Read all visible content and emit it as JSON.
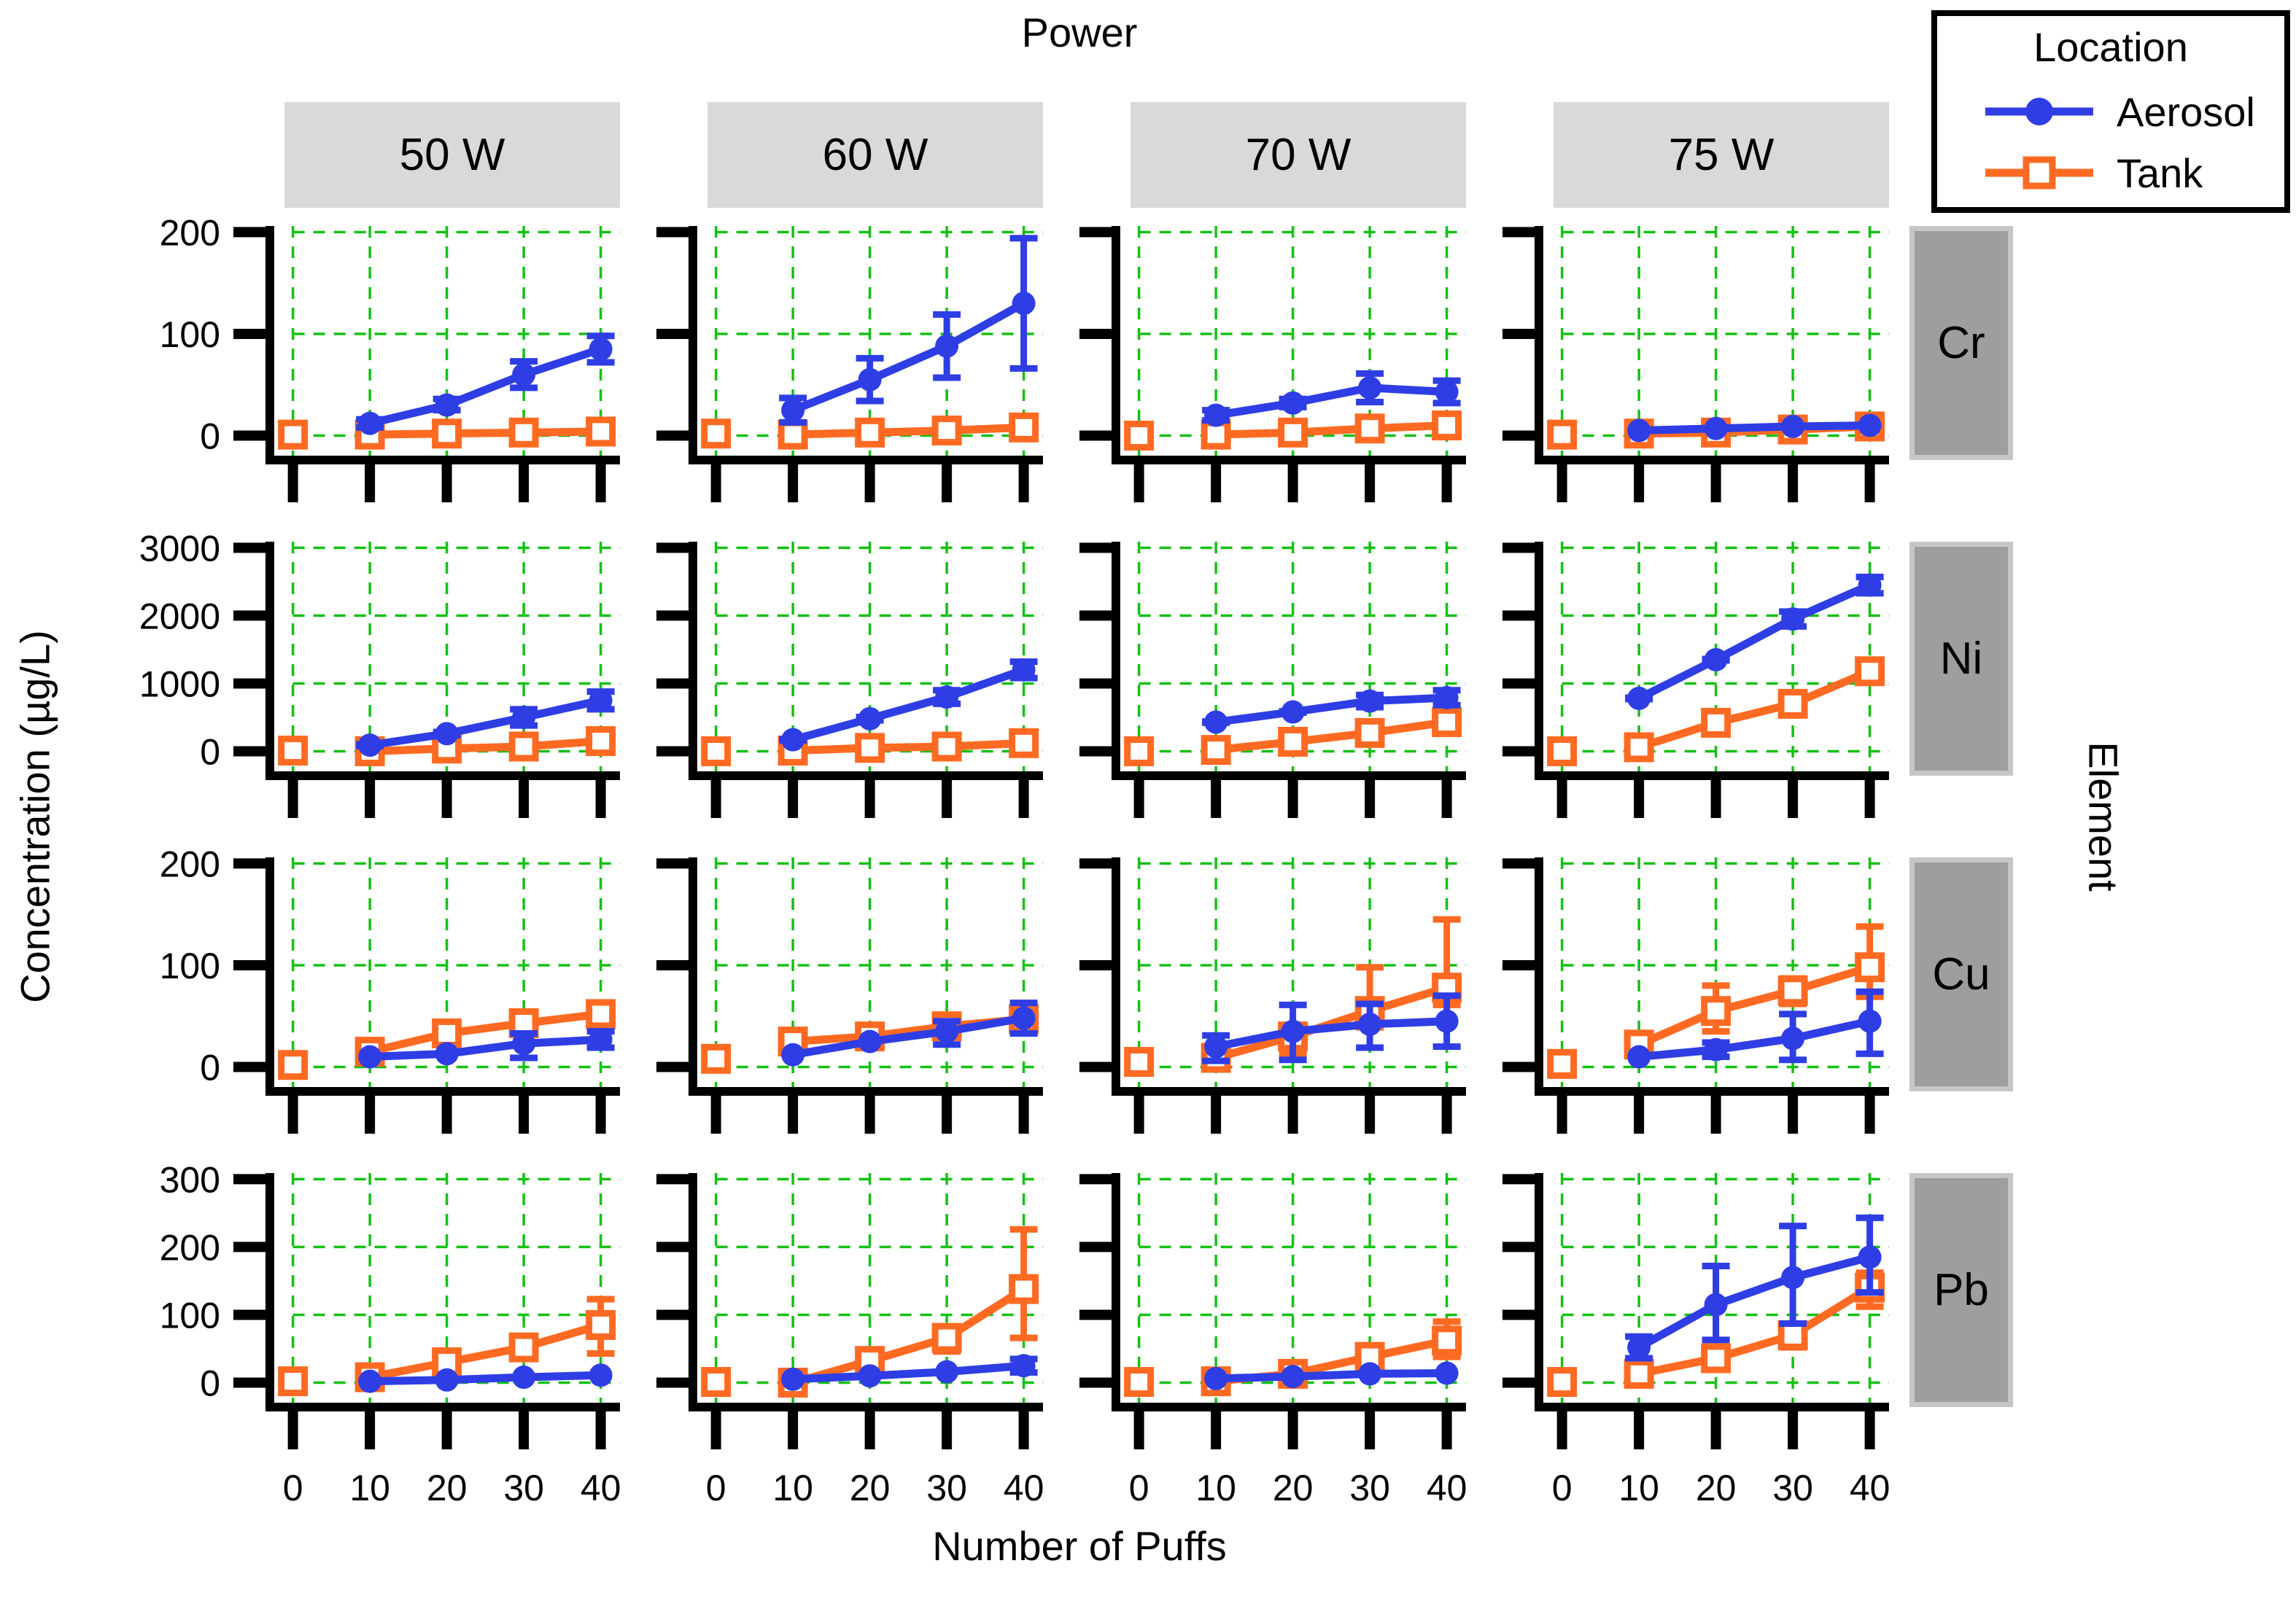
{
  "figure": {
    "top_title": "Power",
    "bottom_title": "Number of Puffs",
    "left_title": "Concentration (µg/L)",
    "right_title": "Element",
    "legend": {
      "title": "Location",
      "items": [
        {
          "label": "Aerosol",
          "series": "aerosol",
          "marker": "filled-circle"
        },
        {
          "label": "Tank",
          "series": "tank",
          "marker": "open-square"
        }
      ]
    },
    "colors": {
      "aerosol": "#2e3ee4",
      "tank": "#ff6a22",
      "grid": "#15c015",
      "axis": "#000000",
      "col_strip_bg": "#d9d9d9",
      "row_strip_bg": "#9e9e9e"
    }
  },
  "chart_data": {
    "type": "line",
    "title": "Power",
    "xlabel": "Number of Puffs",
    "ylabel": "Concentration (µg/L)",
    "facet_col_title": "Power",
    "facet_row_title": "Element",
    "facet_cols": [
      "50 W",
      "60 W",
      "70 W",
      "75 W"
    ],
    "facet_rows": [
      "Cr",
      "Ni",
      "Cu",
      "Pb"
    ],
    "x_ticks": [
      0,
      10,
      20,
      30,
      40
    ],
    "grid": "dashed-green",
    "legend_position": "top-right",
    "rows_config": [
      {
        "element": "Cr",
        "ymax": 200,
        "yticks": [
          0,
          100,
          200
        ]
      },
      {
        "element": "Ni",
        "ymax": 3000,
        "yticks": [
          0,
          1000,
          2000,
          3000
        ]
      },
      {
        "element": "Cu",
        "ymax": 200,
        "yticks": [
          0,
          100,
          200
        ]
      },
      {
        "element": "Pb",
        "ymax": 300,
        "yticks": [
          0,
          100,
          200,
          300
        ]
      }
    ],
    "panels": [
      {
        "element": "Cr",
        "power": "50 W",
        "aerosol": {
          "x": [
            10,
            20,
            30,
            40
          ],
          "y": [
            12,
            30,
            60,
            85
          ],
          "lo": [
            8,
            25,
            47,
            72
          ],
          "hi": [
            16,
            36,
            73,
            98
          ]
        },
        "tank": {
          "x": [
            0,
            10,
            20,
            30,
            40
          ],
          "y": [
            1,
            1,
            2,
            3,
            4
          ]
        }
      },
      {
        "element": "Cr",
        "power": "60 W",
        "aerosol": {
          "x": [
            10,
            20,
            30,
            40
          ],
          "y": [
            25,
            55,
            88,
            130
          ],
          "lo": [
            13,
            34,
            57,
            66
          ],
          "hi": [
            37,
            76,
            119,
            194
          ]
        },
        "tank": {
          "x": [
            0,
            10,
            20,
            30,
            40
          ],
          "y": [
            2,
            1,
            3,
            5,
            8
          ]
        }
      },
      {
        "element": "Cr",
        "power": "70 W",
        "aerosol": {
          "x": [
            10,
            20,
            30,
            40
          ],
          "y": [
            20,
            32,
            47,
            43
          ],
          "lo": [
            15,
            28,
            33,
            32
          ],
          "hi": [
            25,
            36,
            61,
            54
          ]
        },
        "tank": {
          "x": [
            0,
            10,
            20,
            30,
            40
          ],
          "y": [
            0,
            1,
            3,
            7,
            10
          ]
        }
      },
      {
        "element": "Cr",
        "power": "75 W",
        "aerosol": {
          "x": [
            10,
            20,
            30,
            40
          ],
          "y": [
            5,
            7,
            9,
            10
          ]
        },
        "tank": {
          "x": [
            0,
            10,
            20,
            30,
            40
          ],
          "y": [
            1,
            2,
            3,
            6,
            9
          ]
        }
      },
      {
        "element": "Ni",
        "power": "50 W",
        "aerosol": {
          "x": [
            10,
            20,
            30,
            40
          ],
          "y": [
            90,
            260,
            500,
            750
          ],
          "lo": [
            75,
            235,
            380,
            620
          ],
          "hi": [
            105,
            285,
            620,
            880
          ]
        },
        "tank": {
          "x": [
            0,
            10,
            20,
            30,
            40
          ],
          "y": [
            10,
            0,
            40,
            70,
            150
          ]
        }
      },
      {
        "element": "Ni",
        "power": "60 W",
        "aerosol": {
          "x": [
            10,
            20,
            30,
            40
          ],
          "y": [
            170,
            480,
            800,
            1200
          ],
          "lo": [
            160,
            455,
            700,
            1080
          ],
          "hi": [
            180,
            505,
            900,
            1320
          ]
        },
        "tank": {
          "x": [
            0,
            10,
            20,
            30,
            40
          ],
          "y": [
            0,
            10,
            50,
            70,
            120
          ]
        }
      },
      {
        "element": "Ni",
        "power": "70 W",
        "aerosol": {
          "x": [
            10,
            20,
            30,
            40
          ],
          "y": [
            430,
            580,
            740,
            790
          ],
          "lo": [
            420,
            570,
            650,
            680
          ],
          "hi": [
            440,
            590,
            830,
            900
          ]
        },
        "tank": {
          "x": [
            0,
            10,
            20,
            30,
            40
          ],
          "y": [
            0,
            20,
            140,
            270,
            430
          ]
        }
      },
      {
        "element": "Ni",
        "power": "75 W",
        "aerosol": {
          "x": [
            10,
            20,
            30,
            40
          ],
          "y": [
            780,
            1350,
            1950,
            2450
          ],
          "lo": [
            770,
            1340,
            1840,
            2330
          ],
          "hi": [
            790,
            1360,
            2060,
            2570
          ]
        },
        "tank": {
          "x": [
            0,
            10,
            20,
            30,
            40
          ],
          "y": [
            0,
            60,
            420,
            700,
            1180
          ]
        }
      },
      {
        "element": "Cu",
        "power": "50 W",
        "aerosol": {
          "x": [
            10,
            20,
            30,
            40
          ],
          "y": [
            10,
            13,
            23,
            27
          ],
          "lo": [
            10,
            13,
            9,
            19
          ],
          "hi": [
            10,
            13,
            33,
            35
          ]
        },
        "tank": {
          "x": [
            0,
            10,
            20,
            30,
            40
          ],
          "y": [
            2,
            15,
            33,
            43,
            52
          ]
        }
      },
      {
        "element": "Cu",
        "power": "60 W",
        "aerosol": {
          "x": [
            10,
            20,
            30,
            40
          ],
          "y": [
            12,
            25,
            35,
            48
          ],
          "lo": [
            12,
            25,
            22,
            33
          ],
          "hi": [
            12,
            25,
            45,
            63
          ]
        },
        "tank": {
          "x": [
            0,
            10,
            20,
            30,
            40
          ],
          "y": [
            8,
            25,
            30,
            40,
            47
          ],
          "lo": [
            8,
            25,
            30,
            40,
            39
          ],
          "hi": [
            8,
            34,
            38,
            48,
            56
          ]
        }
      },
      {
        "element": "Cu",
        "power": "70 W",
        "aerosol": {
          "x": [
            10,
            20,
            30,
            40
          ],
          "y": [
            20,
            35,
            42,
            45
          ],
          "lo": [
            6,
            7,
            19,
            20
          ],
          "hi": [
            31,
            61,
            62,
            70
          ]
        },
        "tank": {
          "x": [
            0,
            10,
            20,
            30,
            40
          ],
          "y": [
            5,
            9,
            30,
            55,
            78
          ],
          "lo": [
            5,
            9,
            13,
            39,
            61
          ],
          "hi": [
            5,
            9,
            30,
            98,
            145
          ]
        }
      },
      {
        "element": "Cu",
        "power": "75 W",
        "aerosol": {
          "x": [
            10,
            20,
            30,
            40
          ],
          "y": [
            10,
            17,
            28,
            45
          ],
          "lo": [
            10,
            10,
            7,
            13
          ],
          "hi": [
            10,
            24,
            52,
            74
          ]
        },
        "tank": {
          "x": [
            0,
            10,
            20,
            30,
            40
          ],
          "y": [
            3,
            22,
            55,
            75,
            98
          ],
          "lo": [
            3,
            22,
            35,
            62,
            69
          ],
          "hi": [
            3,
            22,
            80,
            87,
            138
          ]
        }
      },
      {
        "element": "Pb",
        "power": "50 W",
        "aerosol": {
          "x": [
            10,
            20,
            30,
            40
          ],
          "y": [
            2,
            4,
            8,
            11
          ]
        },
        "tank": {
          "x": [
            0,
            10,
            20,
            30,
            40
          ],
          "y": [
            2,
            8,
            30,
            52,
            85
          ],
          "lo": [
            2,
            8,
            30,
            52,
            43
          ],
          "hi": [
            2,
            8,
            30,
            52,
            123
          ]
        }
      },
      {
        "element": "Pb",
        "power": "60 W",
        "aerosol": {
          "x": [
            10,
            20,
            30,
            40
          ],
          "y": [
            5,
            10,
            16,
            25
          ],
          "lo": [
            5,
            10,
            16,
            15
          ],
          "hi": [
            5,
            10,
            16,
            35
          ]
        },
        "tank": {
          "x": [
            0,
            10,
            20,
            30,
            40
          ],
          "y": [
            1,
            0,
            32,
            66,
            138
          ],
          "lo": [
            1,
            0,
            32,
            46,
            66
          ],
          "hi": [
            1,
            0,
            32,
            82,
            226
          ]
        }
      },
      {
        "element": "Pb",
        "power": "70 W",
        "aerosol": {
          "x": [
            10,
            20,
            30,
            40
          ],
          "y": [
            6,
            9,
            13,
            14
          ]
        },
        "tank": {
          "x": [
            0,
            10,
            20,
            30,
            40
          ],
          "y": [
            1,
            2,
            13,
            38,
            62
          ],
          "lo": [
            1,
            2,
            13,
            27,
            38
          ],
          "hi": [
            1,
            2,
            13,
            52,
            90
          ]
        }
      },
      {
        "element": "Pb",
        "power": "75 W",
        "aerosol": {
          "x": [
            10,
            20,
            30,
            40
          ],
          "y": [
            52,
            115,
            155,
            185
          ],
          "lo": [
            36,
            63,
            87,
            133
          ],
          "hi": [
            68,
            172,
            231,
            243
          ]
        },
        "tank": {
          "x": [
            0,
            10,
            20,
            30,
            40
          ],
          "y": [
            1,
            13,
            36,
            70,
            140
          ],
          "lo": [
            1,
            13,
            36,
            52,
            112
          ],
          "hi": [
            1,
            13,
            36,
            84,
            162
          ]
        }
      }
    ]
  }
}
